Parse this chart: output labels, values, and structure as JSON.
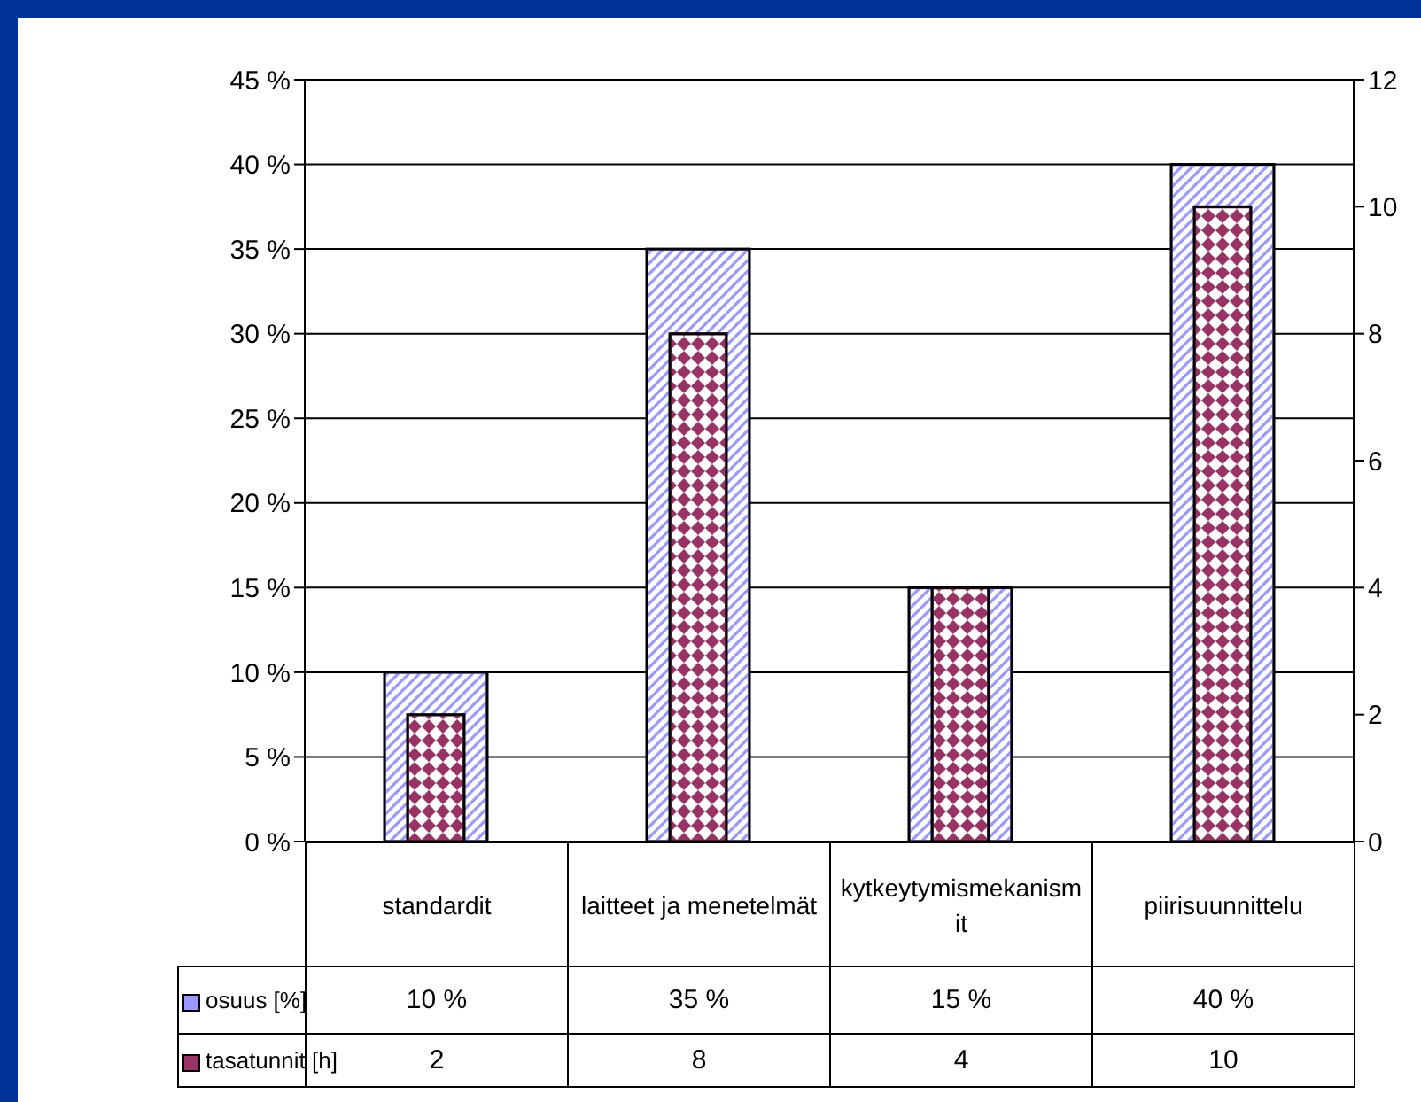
{
  "chart_data": {
    "type": "bar",
    "categories": [
      "standardit",
      "laitteet ja menetelmät",
      "kytkeytymismekanismit",
      "piirisuunnittelu"
    ],
    "series": [
      {
        "name": "osuus [%]",
        "color": "#9999ff",
        "values": [
          10,
          35,
          15,
          40
        ],
        "value_labels": [
          "10 %",
          "35 %",
          "15 %",
          "40 %"
        ]
      },
      {
        "name": "tasatunnit [h]",
        "color": "#993366",
        "values": [
          2,
          8,
          4,
          10
        ],
        "axis": "y2",
        "value_labels": [
          "2",
          "8",
          "4",
          "10"
        ]
      }
    ],
    "ylim": [
      0,
      45
    ],
    "yticks": [
      {
        "value": 0,
        "label": "0 %"
      },
      {
        "value": 5,
        "label": "5 %"
      },
      {
        "value": 10,
        "label": "10 %"
      },
      {
        "value": 15,
        "label": "15 %"
      },
      {
        "value": 20,
        "label": "20 %"
      },
      {
        "value": 25,
        "label": "25 %"
      },
      {
        "value": 30,
        "label": "30 %"
      },
      {
        "value": 35,
        "label": "35 %"
      },
      {
        "value": 40,
        "label": "40 %"
      },
      {
        "value": 45,
        "label": "45 %"
      }
    ],
    "y2lim": [
      0,
      12
    ],
    "y2ticks": [
      0,
      2,
      4,
      6,
      8,
      10,
      12
    ],
    "grid": "y",
    "legend": "bottom"
  }
}
